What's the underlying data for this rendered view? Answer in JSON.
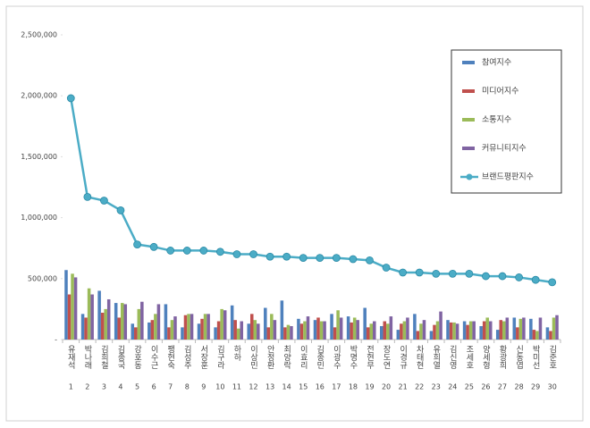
{
  "chart_data": {
    "type": "bar",
    "categories": [
      "유재석",
      "박나래",
      "김희철",
      "김종국",
      "강호동",
      "이수근",
      "팽현숙",
      "김성주",
      "서장훈",
      "김구라",
      "하하",
      "이상민",
      "안정환",
      "최양락",
      "이효리",
      "김종민",
      "이광수",
      "박명수",
      "전현무",
      "장도연",
      "이경규",
      "차태현",
      "유희열",
      "김신영",
      "조세호",
      "양세형",
      "황광희",
      "신동엽",
      "박미선",
      "김준호"
    ],
    "category_numbers": [
      "1",
      "2",
      "3",
      "4",
      "5",
      "6",
      "7",
      "8",
      "9",
      "10",
      "11",
      "12",
      "13",
      "14",
      "15",
      "16",
      "17",
      "18",
      "19",
      "20",
      "21",
      "22",
      "23",
      "24",
      "25",
      "26",
      "27",
      "28",
      "29",
      "30"
    ],
    "series": [
      {
        "name": "참여지수",
        "color": "#4f81bd",
        "values": [
          570000,
          210000,
          400000,
          300000,
          130000,
          140000,
          290000,
          100000,
          130000,
          100000,
          280000,
          130000,
          260000,
          320000,
          170000,
          160000,
          210000,
          190000,
          260000,
          110000,
          80000,
          210000,
          70000,
          160000,
          150000,
          110000,
          80000,
          180000,
          170000,
          100000
        ]
      },
      {
        "name": "미디어지수",
        "color": "#c0504d",
        "values": [
          370000,
          180000,
          220000,
          180000,
          100000,
          160000,
          100000,
          200000,
          170000,
          150000,
          160000,
          210000,
          100000,
          100000,
          130000,
          180000,
          100000,
          140000,
          100000,
          150000,
          130000,
          70000,
          120000,
          140000,
          120000,
          150000,
          160000,
          100000,
          80000,
          70000
        ]
      },
      {
        "name": "소통지수",
        "color": "#9bbb59",
        "values": [
          540000,
          420000,
          250000,
          300000,
          250000,
          210000,
          160000,
          210000,
          210000,
          250000,
          90000,
          160000,
          210000,
          120000,
          150000,
          150000,
          240000,
          180000,
          130000,
          130000,
          150000,
          130000,
          150000,
          140000,
          150000,
          180000,
          150000,
          170000,
          70000,
          180000
        ]
      },
      {
        "name": "커뮤니티지수",
        "color": "#8064a2",
        "values": [
          510000,
          370000,
          330000,
          290000,
          310000,
          290000,
          190000,
          210000,
          210000,
          240000,
          150000,
          130000,
          160000,
          110000,
          190000,
          150000,
          180000,
          160000,
          150000,
          190000,
          180000,
          160000,
          230000,
          130000,
          150000,
          150000,
          180000,
          180000,
          180000,
          200000
        ]
      },
      {
        "name": "브랜드평판지수",
        "color": "#4bacc6",
        "type": "line",
        "values": [
          1980000,
          1170000,
          1140000,
          1060000,
          780000,
          760000,
          730000,
          730000,
          730000,
          720000,
          700000,
          700000,
          680000,
          680000,
          670000,
          670000,
          670000,
          660000,
          650000,
          590000,
          550000,
          550000,
          540000,
          540000,
          540000,
          520000,
          520000,
          510000,
          490000,
          470000
        ]
      }
    ],
    "ylim": [
      0,
      2500000
    ],
    "yticks": [
      {
        "value": 0,
        "label": "-"
      },
      {
        "value": 500000,
        "label": "500,000"
      },
      {
        "value": 1000000,
        "label": "1,000,000"
      },
      {
        "value": 1500000,
        "label": "1,500,000"
      },
      {
        "value": 2000000,
        "label": "2,000,000"
      },
      {
        "value": 2500000,
        "label": "2,500,000"
      }
    ],
    "legend": "top-right"
  }
}
